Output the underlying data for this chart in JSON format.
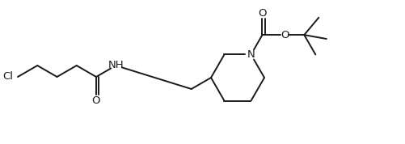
{
  "bg_color": "#ffffff",
  "line_color": "#1a1a1a",
  "line_width": 1.4,
  "font_size": 9.5,
  "figsize": [
    5.02,
    1.78
  ],
  "dpi": 100,
  "atoms": {
    "Cl": "Cl",
    "NH": "NH",
    "N": "N",
    "O_carbonyl1": "O",
    "O_carbonyl2": "O",
    "O_ester": "O"
  }
}
